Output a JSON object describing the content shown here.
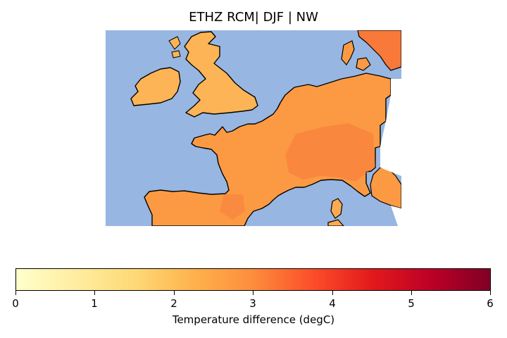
{
  "title": "ETHZ RCM| DJF | NW",
  "map": {
    "region": "Western Europe (NW sub-domain)",
    "variable": "Temperature difference",
    "season": "DJF",
    "model": "ETHZ RCM",
    "colors": {
      "ocean": "#97b6e1",
      "coast": "#000000",
      "land_low": "#fdb55a",
      "land_mid": "#fd9c45",
      "land_high": "#f8783a"
    }
  },
  "colorbar": {
    "label": "Temperature difference (degC)",
    "min": 0,
    "max": 6,
    "ticks": [
      "0",
      "1",
      "2",
      "3",
      "4",
      "5",
      "6"
    ],
    "colormap": "YlOrRd"
  }
}
